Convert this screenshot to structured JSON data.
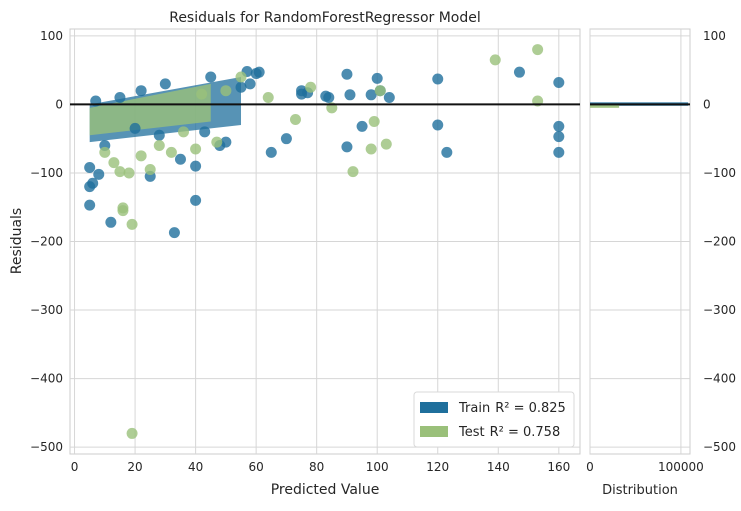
{
  "chart_data": [
    {
      "type": "scatter",
      "title": "Residuals for RandomForestRegressor Model",
      "xlabel": "Predicted Value",
      "ylabel": "Residuals",
      "xlim": [
        -1.5,
        167
      ],
      "ylim": [
        -510,
        110
      ],
      "xticks": [
        0,
        20,
        40,
        60,
        80,
        100,
        120,
        140,
        160
      ],
      "yticks": [
        100,
        0,
        -100,
        -200,
        -300,
        -400,
        -500
      ],
      "grid": true,
      "legend_position": "lower-right",
      "zero_line": 0,
      "series": [
        {
          "name": "Train R² = 0.825",
          "label_prefix": "Train",
          "r2_text": "R² = 0.825",
          "color": "#1f6f9c",
          "x": [
            5,
            6,
            5,
            5,
            8,
            12,
            25,
            33,
            40,
            40,
            48,
            57,
            61,
            75,
            75,
            77,
            83,
            84,
            90,
            90,
            91,
            95,
            98,
            100,
            101,
            104,
            120,
            120,
            123,
            147,
            160,
            160,
            160,
            160,
            60,
            58,
            55,
            50,
            45,
            43,
            30,
            20,
            15,
            10,
            7,
            65,
            70,
            35,
            28,
            22
          ],
          "y": [
            -92,
            -115,
            -147,
            -120,
            -102,
            -172,
            -105,
            -187,
            -140,
            -90,
            -60,
            48,
            47,
            15,
            20,
            17,
            12,
            10,
            -62,
            44,
            14,
            -32,
            14,
            38,
            20,
            10,
            37,
            -30,
            -70,
            47,
            32,
            -32,
            -47,
            -70,
            45,
            30,
            25,
            -55,
            40,
            -40,
            30,
            -35,
            10,
            -60,
            5,
            -70,
            -50,
            -80,
            -45,
            20
          ]
        },
        {
          "name": "Test R² = 0.758",
          "label_prefix": "Test",
          "r2_text": "R² = 0.758",
          "color": "#9ac07a",
          "x": [
            19,
            19,
            16,
            16,
            18,
            15,
            13,
            25,
            32,
            40,
            47,
            55,
            64,
            73,
            78,
            85,
            92,
            98,
            99,
            101,
            103,
            139,
            153,
            153,
            50,
            42,
            36,
            28,
            22,
            10
          ],
          "y": [
            -480,
            -175,
            -151,
            -155,
            -100,
            -98,
            -85,
            -95,
            -70,
            -65,
            -55,
            40,
            10,
            -22,
            25,
            -5,
            -98,
            -65,
            -25,
            20,
            -58,
            65,
            80,
            5,
            20,
            15,
            -40,
            -60,
            -75,
            -70
          ]
        }
      ],
      "band": {
        "x_range": [
          5,
          55
        ],
        "upper": [
          0,
          40
        ],
        "lower": [
          -55,
          -30
        ]
      }
    },
    {
      "type": "bar",
      "xlabel": "Distribution",
      "xlim": [
        0,
        110000
      ],
      "xticks": [
        0,
        100000
      ],
      "yticks": [
        100,
        0,
        -100,
        -200,
        -300,
        -400,
        -500
      ],
      "series": [
        {
          "name": "Train",
          "color": "#1f6f9c",
          "bins": [
            {
              "y_from": -2,
              "y_to": 3,
              "count": 108000
            }
          ]
        },
        {
          "name": "Test",
          "color": "#9ac07a",
          "bins": [
            {
              "y_from": -5,
              "y_to": -1,
              "count": 32000
            },
            {
              "y_from": -1,
              "y_to": 1,
              "count": 6000
            }
          ]
        }
      ]
    }
  ]
}
